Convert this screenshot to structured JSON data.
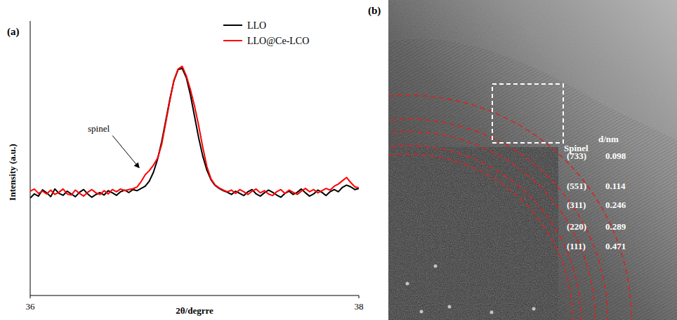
{
  "chart_data": {
    "type": "line",
    "xlabel": "2θ/degrre",
    "ylabel": "Intensity (a.u.)",
    "x": [
      36,
      36.025,
      36.05,
      36.075,
      36.1,
      36.125,
      36.15,
      36.175,
      36.2,
      36.225,
      36.25,
      36.275,
      36.3,
      36.325,
      36.35,
      36.375,
      36.4,
      36.425,
      36.45,
      36.475,
      36.5,
      36.525,
      36.55,
      36.575,
      36.6,
      36.625,
      36.65,
      36.675,
      36.7,
      36.725,
      36.75,
      36.775,
      36.8,
      36.825,
      36.85,
      36.875,
      36.9,
      36.925,
      36.95,
      36.975,
      37,
      37.025,
      37.05,
      37.075,
      37.1,
      37.125,
      37.15,
      37.175,
      37.2,
      37.225,
      37.25,
      37.275,
      37.3,
      37.325,
      37.35,
      37.375,
      37.4,
      37.425,
      37.45,
      37.475,
      37.5,
      37.525,
      37.55,
      37.575,
      37.6,
      37.625,
      37.65,
      37.675,
      37.7,
      37.725,
      37.75,
      37.775,
      37.8,
      37.825,
      37.85,
      37.875,
      37.9,
      37.925,
      37.95,
      37.975,
      38
    ],
    "series": [
      {
        "name": "LLO",
        "color": "#000000",
        "values": [
          35.5,
          37.0,
          36.2,
          38.5,
          37.4,
          36.0,
          38.8,
          37.2,
          36.5,
          38.0,
          37.0,
          36.0,
          37.6,
          38.6,
          37.0,
          35.8,
          36.8,
          37.5,
          36.6,
          38.2,
          37.4,
          36.5,
          37.8,
          38.4,
          37.5,
          38.6,
          38.2,
          39.0,
          39.8,
          41.7,
          44.9,
          49.6,
          56.0,
          63.7,
          71.6,
          78.3,
          82.3,
          82.7,
          79.4,
          73.1,
          65.3,
          57.5,
          50.8,
          45.7,
          42.2,
          40.1,
          39.0,
          38.2,
          37.6,
          36.8,
          38.0,
          37.2,
          36.4,
          37.8,
          38.6,
          37.0,
          36.2,
          37.4,
          38.4,
          37.6,
          36.6,
          35.8,
          37.2,
          38.0,
          36.8,
          37.6,
          38.8,
          37.4,
          36.2,
          37.0,
          38.4,
          37.6,
          36.4,
          37.8,
          38.6,
          37.8,
          39.4,
          40.2,
          39.6,
          38.6,
          39.0
        ]
      },
      {
        "name": "LLO@Ce-LCO",
        "color": "#ff0000",
        "values": [
          38.0,
          38.8,
          37.2,
          38.0,
          37.0,
          38.4,
          36.8,
          37.6,
          38.8,
          37.0,
          36.6,
          38.4,
          37.2,
          36.2,
          37.6,
          38.6,
          37.4,
          36.8,
          38.2,
          37.0,
          38.6,
          37.8,
          38.8,
          38.2,
          38.6,
          38.9,
          39.5,
          41.5,
          44,
          45.5,
          47.5,
          50,
          55,
          63,
          71,
          78.5,
          82.5,
          83.5,
          80,
          75,
          69,
          62,
          54,
          47,
          42.5,
          40.3,
          39.2,
          38.4,
          37.8,
          38.4,
          37.2,
          38.6,
          37.8,
          36.8,
          38.0,
          38.8,
          37.4,
          38.2,
          37.0,
          36.4,
          37.8,
          38.6,
          37.2,
          38.4,
          37.6,
          36.8,
          38.0,
          39.0,
          37.8,
          38.6,
          37.4,
          38.2,
          39.0,
          38.4,
          39.8,
          40.6,
          41.8,
          43.0,
          41.2,
          39.6,
          39.2
        ]
      }
    ],
    "xlim": [
      36,
      38
    ],
    "xticks": [
      36,
      38
    ],
    "ylim": [
      0,
      100
    ],
    "yticks": [],
    "tick_labels": "x",
    "legend": "upper right",
    "annotations": [
      {
        "text": "spinel",
        "x": 36.68,
        "y": 45
      }
    ]
  },
  "panel_labels": [
    "(a)",
    "(b)"
  ],
  "tem_image": {
    "header": [
      "Spinel",
      "d/nm"
    ],
    "rows": [
      [
        "(733)",
        0.098
      ],
      [
        "(551)",
        0.114
      ],
      [
        "(311)",
        0.246
      ],
      [
        "(220)",
        0.289
      ],
      [
        "(111)",
        0.471
      ]
    ]
  }
}
